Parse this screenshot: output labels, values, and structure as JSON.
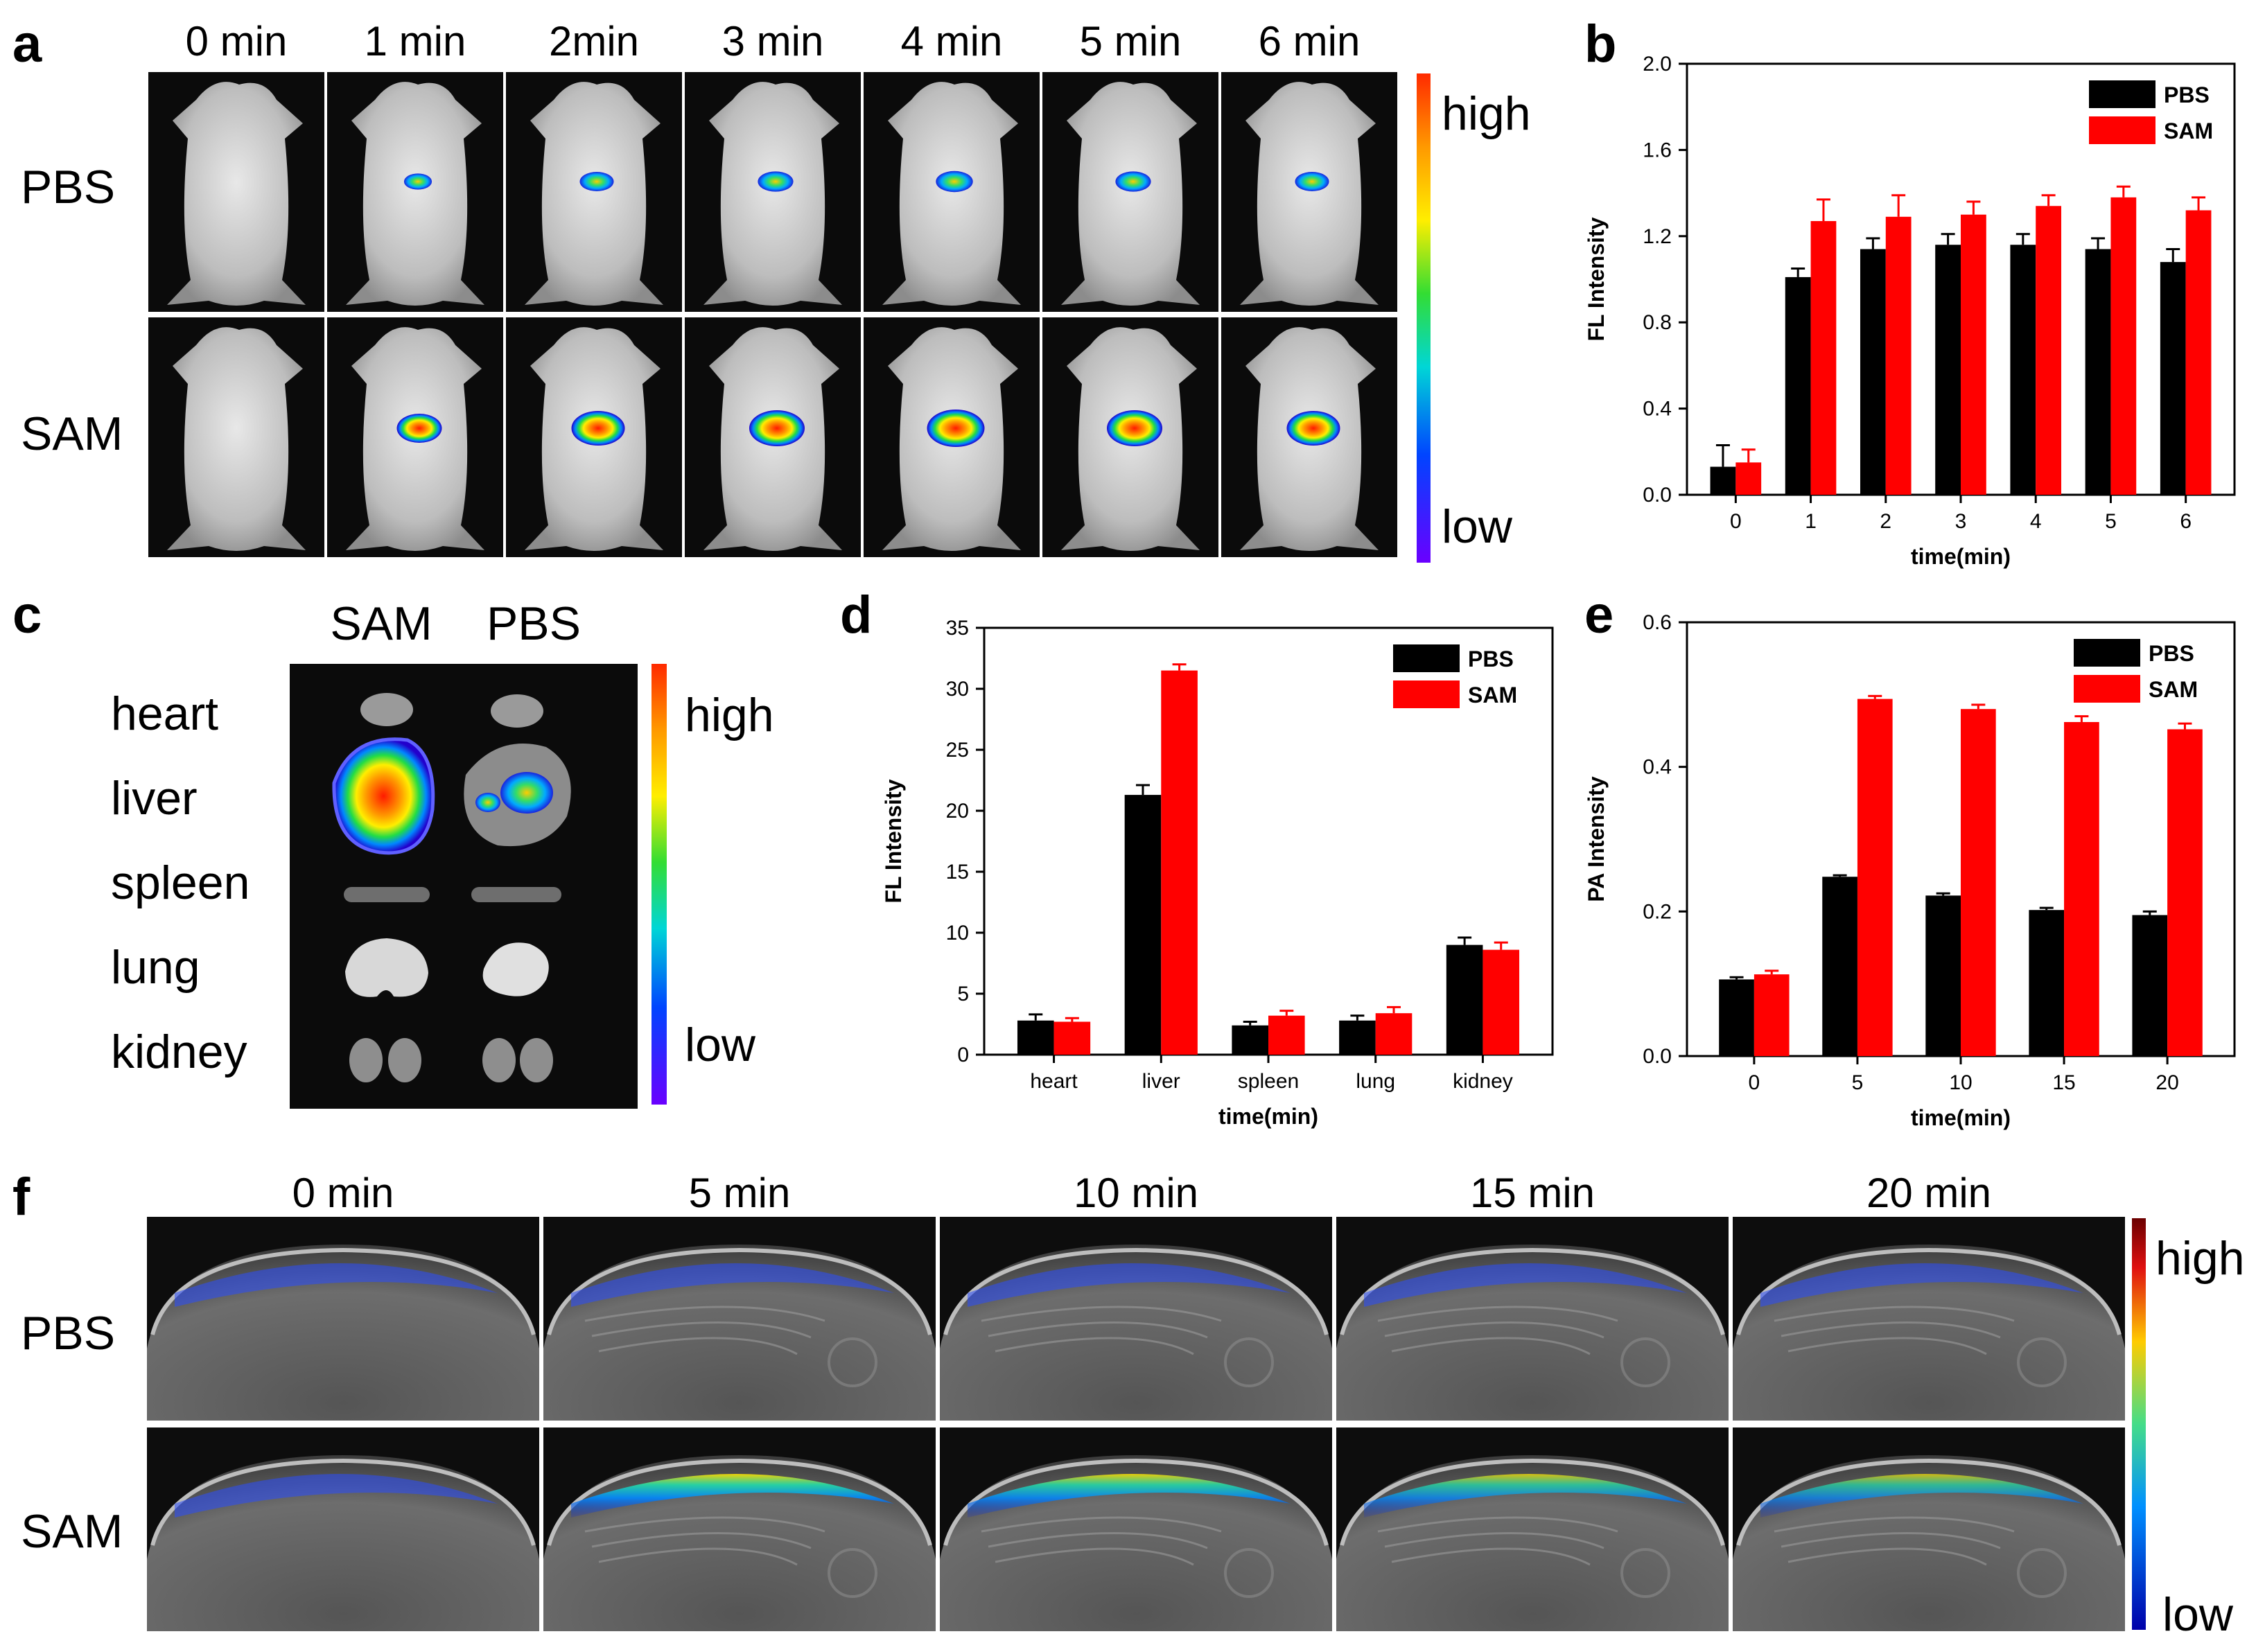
{
  "panel_labels": {
    "a": "a",
    "b": "b",
    "c": "c",
    "d": "d",
    "e": "e",
    "f": "f"
  },
  "colorbar": {
    "high": "high",
    "low": "low"
  },
  "panel_a": {
    "times": [
      "0 min",
      "1 min",
      "2min",
      "3 min",
      "4 min",
      "5 min",
      "6 min"
    ],
    "rows": [
      "PBS",
      "SAM"
    ]
  },
  "panel_c": {
    "columns": [
      "SAM",
      "PBS"
    ],
    "organs": [
      "heart",
      "liver",
      "spleen",
      "lung",
      "kidney"
    ]
  },
  "panel_f": {
    "times": [
      "0 min",
      "5 min",
      "10 min",
      "15 min",
      "20 min"
    ],
    "rows": [
      "PBS",
      "SAM"
    ]
  },
  "colors": {
    "pbs": "#000000",
    "sam": "#ff0000"
  },
  "chart_data": [
    {
      "id": "b",
      "type": "bar",
      "title": "",
      "xlabel": "time(min)",
      "ylabel": "FL Intensity",
      "categories": [
        "0",
        "1",
        "2",
        "3",
        "4",
        "5",
        "6"
      ],
      "ylim": [
        0,
        2.0
      ],
      "yticks": [
        "0.0",
        "0.4",
        "0.8",
        "1.2",
        "1.6",
        "2.0"
      ],
      "legend": "top-right",
      "series": [
        {
          "name": "PBS",
          "color": "#000000",
          "values": [
            0.13,
            1.01,
            1.14,
            1.16,
            1.16,
            1.14,
            1.08
          ],
          "errors": [
            0.1,
            0.04,
            0.05,
            0.05,
            0.05,
            0.05,
            0.06
          ]
        },
        {
          "name": "SAM",
          "color": "#ff0000",
          "values": [
            0.15,
            1.27,
            1.29,
            1.3,
            1.34,
            1.38,
            1.32
          ],
          "errors": [
            0.06,
            0.1,
            0.1,
            0.06,
            0.05,
            0.05,
            0.06
          ]
        }
      ]
    },
    {
      "id": "d",
      "type": "bar",
      "title": "",
      "xlabel": "time(min)",
      "ylabel": "FL Intensity",
      "categories": [
        "heart",
        "liver",
        "spleen",
        "lung",
        "kidney"
      ],
      "ylim": [
        0,
        35
      ],
      "yticks": [
        "0",
        "5",
        "10",
        "15",
        "20",
        "25",
        "30",
        "35"
      ],
      "legend": "top-right",
      "series": [
        {
          "name": "PBS",
          "color": "#000000",
          "values": [
            2.8,
            21.3,
            2.4,
            2.8,
            9.0
          ],
          "errors": [
            0.5,
            0.8,
            0.3,
            0.4,
            0.6
          ]
        },
        {
          "name": "SAM",
          "color": "#ff0000",
          "values": [
            2.7,
            31.5,
            3.2,
            3.4,
            8.6
          ],
          "errors": [
            0.3,
            0.5,
            0.4,
            0.5,
            0.6
          ]
        }
      ]
    },
    {
      "id": "e",
      "type": "bar",
      "title": "",
      "xlabel": "time(min)",
      "ylabel": "PA Intensity",
      "categories": [
        "0",
        "5",
        "10",
        "15",
        "20"
      ],
      "ylim": [
        0,
        0.6
      ],
      "yticks": [
        "0.0",
        "0.2",
        "0.4",
        "0.6"
      ],
      "legend": "top-right",
      "series": [
        {
          "name": "PBS",
          "color": "#000000",
          "values": [
            0.106,
            0.248,
            0.222,
            0.202,
            0.195
          ],
          "errors": [
            0.003,
            0.002,
            0.003,
            0.003,
            0.005
          ]
        },
        {
          "name": "SAM",
          "color": "#ff0000",
          "values": [
            0.113,
            0.494,
            0.48,
            0.462,
            0.452
          ],
          "errors": [
            0.005,
            0.004,
            0.006,
            0.008,
            0.008
          ]
        }
      ]
    }
  ]
}
